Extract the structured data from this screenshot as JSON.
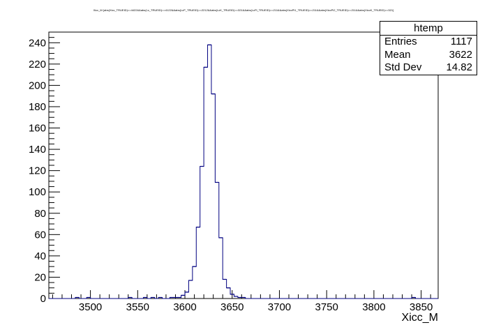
{
  "chart_data": {
    "type": "histogram",
    "title": "Xicc_M {abs(Xicc_TRUEID)==4422&&abs(Lc_TRUEID)==4122&&abs(LcP_TRUEID)==2212&&abs(LcK_TRUEID)==321&&abs(LcPi_TRUEID)==211&&abs(XiccPi1_TRUEID)==211&&abs(XiccPi2_TRUEID)==211&&abs(XiccK_TRUEID)==321}",
    "xlabel": "Xicc_M",
    "ylabel": "",
    "xlim": [
      3456,
      3868
    ],
    "ylim": [
      0,
      250
    ],
    "bin_width": 4,
    "x_ticks": [
      3500,
      3550,
      3600,
      3650,
      3700,
      3750,
      3800,
      3850
    ],
    "y_ticks": [
      0,
      20,
      40,
      60,
      80,
      100,
      120,
      140,
      160,
      180,
      200,
      220,
      240
    ],
    "grid": false,
    "line_color": "#000080",
    "series": [
      {
        "bins": [
          {
            "x": 3484,
            "y": 1
          },
          {
            "x": 3496,
            "y": 1
          },
          {
            "x": 3540,
            "y": 1
          },
          {
            "x": 3556,
            "y": 1
          },
          {
            "x": 3564,
            "y": 1
          },
          {
            "x": 3572,
            "y": 1
          },
          {
            "x": 3584,
            "y": 1
          },
          {
            "x": 3588,
            "y": 1
          },
          {
            "x": 3592,
            "y": 1
          },
          {
            "x": 3596,
            "y": 3
          },
          {
            "x": 3600,
            "y": 6
          },
          {
            "x": 3604,
            "y": 17
          },
          {
            "x": 3608,
            "y": 30
          },
          {
            "x": 3612,
            "y": 67
          },
          {
            "x": 3616,
            "y": 124
          },
          {
            "x": 3620,
            "y": 217
          },
          {
            "x": 3624,
            "y": 238
          },
          {
            "x": 3628,
            "y": 192
          },
          {
            "x": 3632,
            "y": 109
          },
          {
            "x": 3636,
            "y": 57
          },
          {
            "x": 3640,
            "y": 18
          },
          {
            "x": 3644,
            "y": 10
          },
          {
            "x": 3648,
            "y": 4
          },
          {
            "x": 3652,
            "y": 2
          },
          {
            "x": 3656,
            "y": 1
          },
          {
            "x": 3660,
            "y": 1
          },
          {
            "x": 3840,
            "y": 1
          }
        ]
      }
    ],
    "stats": {
      "name": "htemp",
      "entries_label": "Entries",
      "entries": "1117",
      "mean_label": "Mean",
      "mean": "3622",
      "stddev_label": "Std Dev",
      "stddev": "14.82",
      "placement": "top-right"
    }
  }
}
